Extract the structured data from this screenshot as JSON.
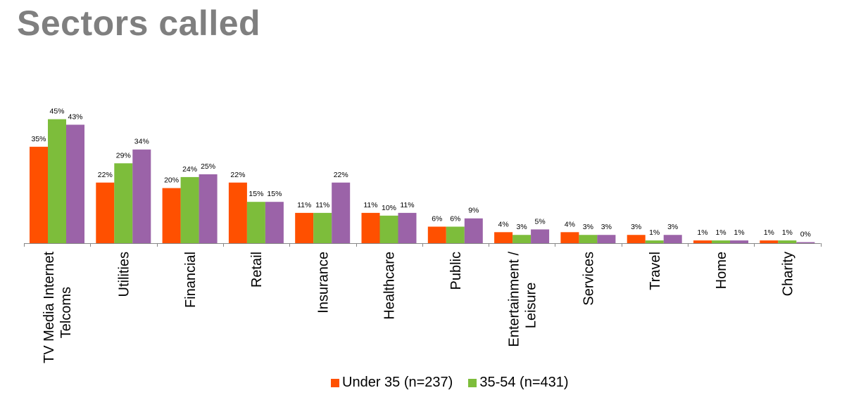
{
  "title": "Sectors called",
  "colors": {
    "under35": "#ff5000",
    "age35_54": "#7dbd3b",
    "third": "#9b63a8",
    "axis": "#868686",
    "title": "#7f7f7f"
  },
  "legend": [
    {
      "label": "Under 35 (n=237)",
      "color": "#ff5000"
    },
    {
      "label": "35-54 (n=431)",
      "color": "#7dbd3b"
    }
  ],
  "chart_data": {
    "type": "bar",
    "title": "Sectors called",
    "xlabel": "",
    "ylabel": "",
    "ylim": [
      0,
      50
    ],
    "grid": false,
    "legend_position": "bottom",
    "categories": [
      "TV Media Internet Telcoms",
      "Utilities",
      "Financial",
      "Retail",
      "Insurance",
      "Healthcare",
      "Public",
      "Entertainment / Leisure",
      "Services",
      "Travel",
      "Home",
      "Charity"
    ],
    "category_label_lines": [
      [
        "TV Media Internet",
        "Telcoms"
      ],
      [
        "Utilities"
      ],
      [
        "Financial"
      ],
      [
        "Retail"
      ],
      [
        "Insurance"
      ],
      [
        "Healthcare"
      ],
      [
        "Public"
      ],
      [
        "Entertainment /",
        "Leisure"
      ],
      [
        "Services"
      ],
      [
        "Travel"
      ],
      [
        "Home"
      ],
      [
        "Charity"
      ]
    ],
    "series": [
      {
        "name": "Under 35 (n=237)",
        "color": "#ff5000",
        "values": [
          35,
          22,
          20,
          22,
          11,
          11,
          6,
          4,
          4,
          3,
          1,
          1
        ]
      },
      {
        "name": "35-54 (n=431)",
        "color": "#7dbd3b",
        "values": [
          45,
          29,
          24,
          15,
          11,
          10,
          6,
          3,
          3,
          1,
          1,
          1
        ]
      },
      {
        "name": "",
        "color": "#9b63a8",
        "values": [
          43,
          34,
          25,
          15,
          22,
          11,
          9,
          5,
          3,
          3,
          1,
          0
        ]
      }
    ],
    "data_labels": true,
    "value_suffix": "%"
  }
}
